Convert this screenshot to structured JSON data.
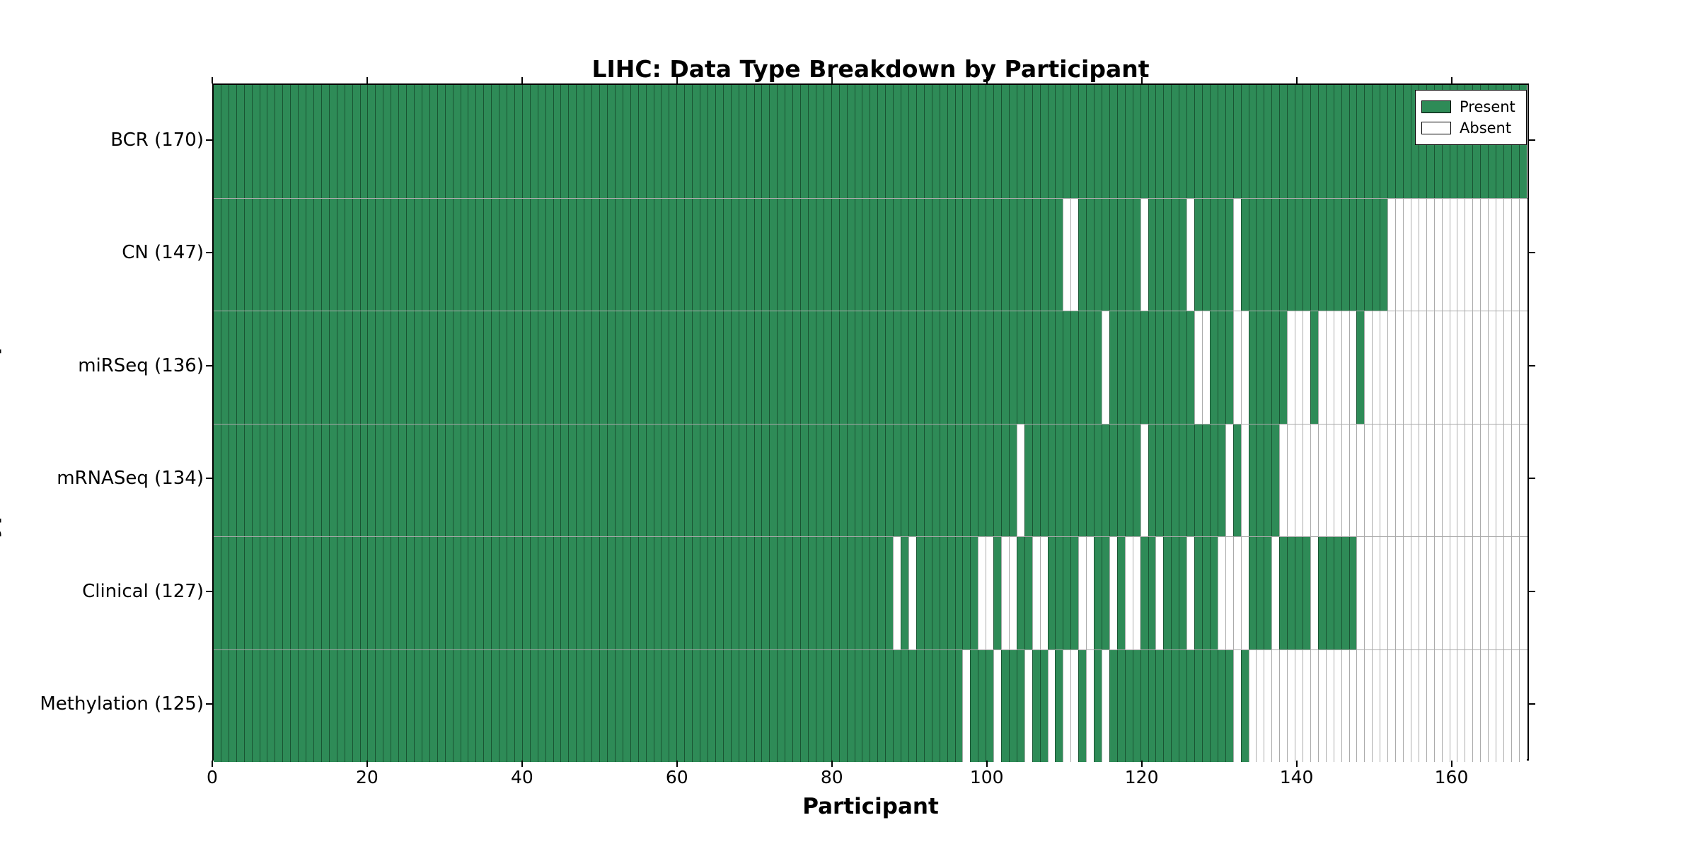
{
  "title": "LIHC: Data Type Breakdown by Participant",
  "x_axis": {
    "label": "Participant",
    "ticks": [
      0,
      20,
      40,
      60,
      80,
      100,
      120,
      140,
      160
    ],
    "min": 0,
    "max": 170
  },
  "y_axis": {
    "label": "Data Type (Total Sample Count)"
  },
  "legend": {
    "present_label": "Present",
    "absent_label": "Absent"
  },
  "colors": {
    "present": "#2E8B57",
    "absent": "#FFFFFF"
  },
  "chart_data": {
    "type": "heatmap",
    "title": "LIHC: Data Type Breakdown by Participant",
    "xlabel": "Participant",
    "ylabel": "Data Type (Total Sample Count)",
    "n_participants": 170,
    "xlim": [
      0,
      170
    ],
    "legend_position": "upper right",
    "value_meaning": {
      "present": 1,
      "absent": 0
    },
    "rows": [
      {
        "label": "BCR (170)",
        "name": "BCR",
        "total_present": 170,
        "absent": []
      },
      {
        "label": "CN (147)",
        "name": "CN",
        "total_present": 147,
        "absent": [
          110,
          111,
          120,
          126,
          132,
          [
            152,
            169
          ]
        ]
      },
      {
        "label": "miRSeq (136)",
        "name": "miRSeq",
        "total_present": 136,
        "absent": [
          115,
          127,
          128,
          132,
          133,
          [
            139,
            141
          ],
          [
            143,
            147
          ],
          [
            149,
            169
          ]
        ]
      },
      {
        "label": "mRNASeq (134)",
        "name": "mRNASeq",
        "total_present": 134,
        "absent": [
          104,
          120,
          131,
          133,
          [
            138,
            169
          ]
        ]
      },
      {
        "label": "Clinical (127)",
        "name": "Clinical",
        "total_present": 127,
        "absent": [
          88,
          90,
          99,
          100,
          102,
          103,
          106,
          107,
          112,
          113,
          116,
          118,
          119,
          122,
          126,
          [
            130,
            133
          ],
          137,
          142,
          [
            148,
            169
          ]
        ]
      },
      {
        "label": "Methylation (125)",
        "name": "Methylation",
        "total_present": 125,
        "absent": [
          97,
          101,
          105,
          108,
          110,
          111,
          113,
          115,
          132,
          [
            134,
            169
          ]
        ]
      }
    ]
  }
}
